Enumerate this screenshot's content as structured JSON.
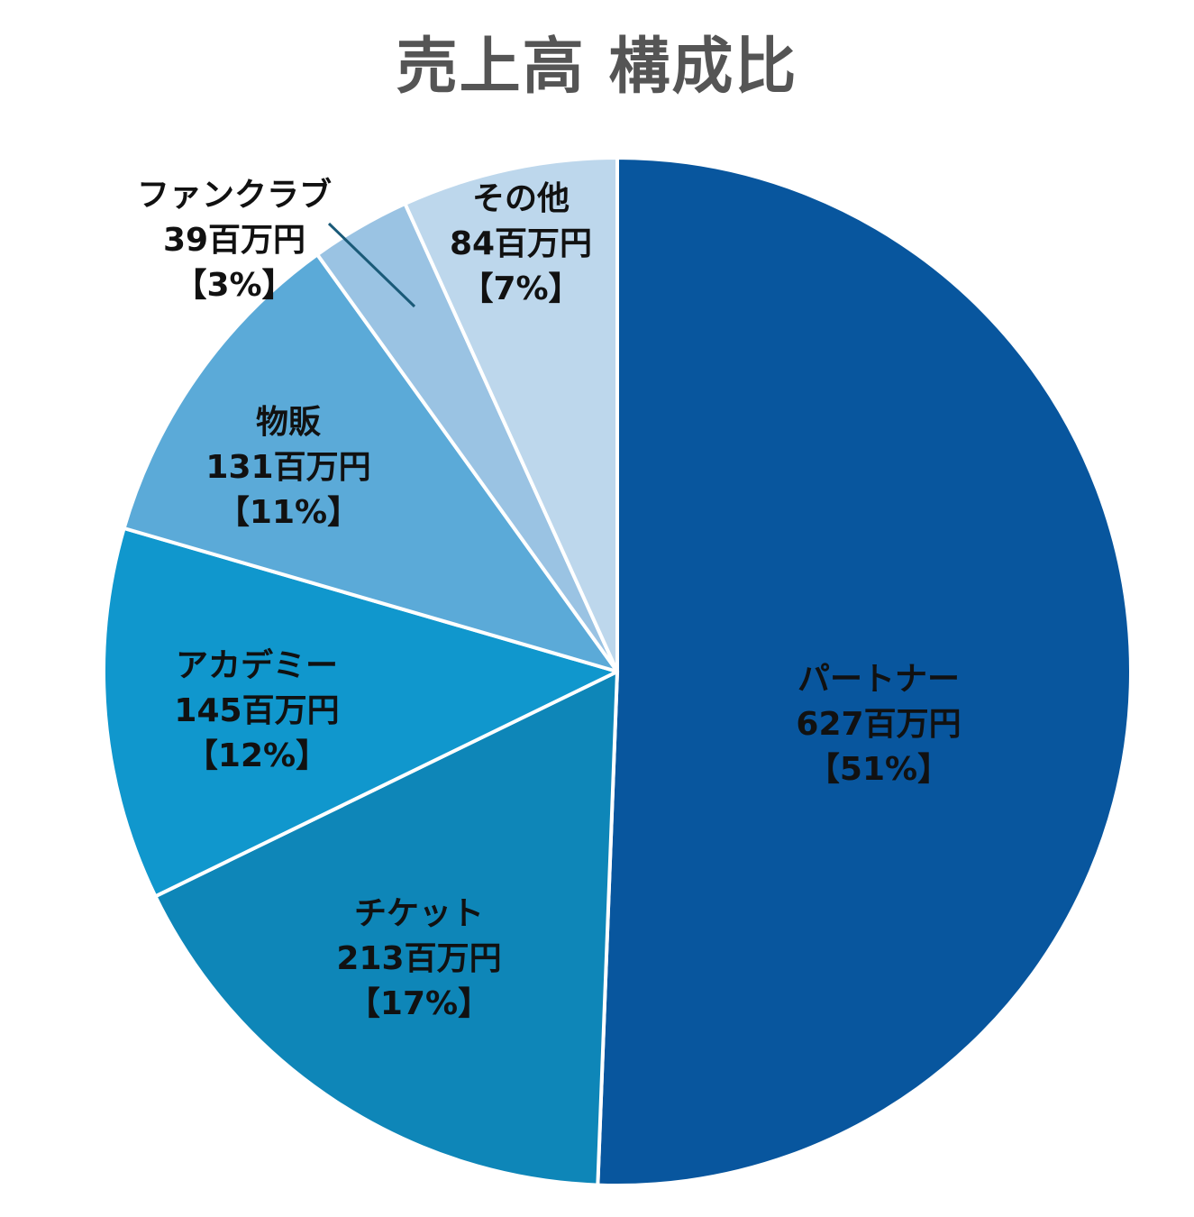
{
  "chart_data": {
    "type": "pie",
    "title": "売上高 構成比",
    "unit": "百万円",
    "slices": [
      {
        "name": "パートナー",
        "value": 627,
        "value_label": "627百万円",
        "percent_label": "【51%】",
        "color": "#08569E"
      },
      {
        "name": "チケット",
        "value": 213,
        "value_label": "213百万円",
        "percent_label": "【17%】",
        "color": "#0E86B8"
      },
      {
        "name": "アカデミー",
        "value": 145,
        "value_label": "145百万円",
        "percent_label": "【12%】",
        "color": "#1097CD"
      },
      {
        "name": "物販",
        "value": 131,
        "value_label": "131百万円",
        "percent_label": "【11%】",
        "color": "#5BAAD8"
      },
      {
        "name": "ファンクラブ",
        "value": 39,
        "value_label": "39百万円",
        "percent_label": "【3%】",
        "color": "#9AC3E3"
      },
      {
        "name": "その他",
        "value": 84,
        "value_label": "84百万円",
        "percent_label": "【7%】",
        "color": "#BDD7EC"
      }
    ]
  }
}
